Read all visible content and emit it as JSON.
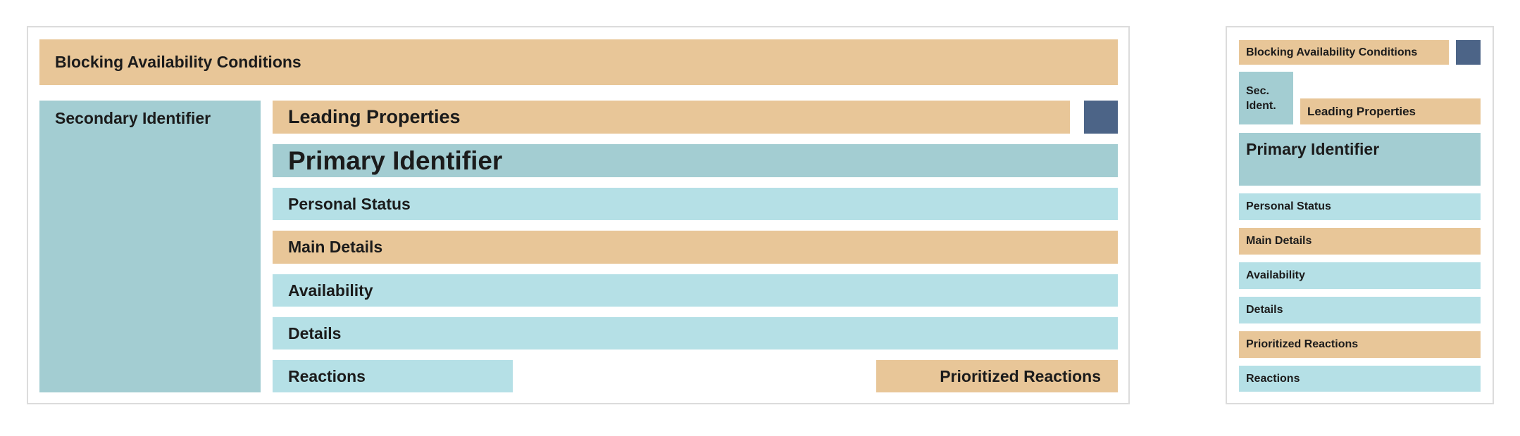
{
  "wide": {
    "blocking": "Blocking Availability Conditions",
    "secondary": "Secondary Identifier",
    "leading": "Leading Properties",
    "primary": "Primary Identifier",
    "personal_status": "Personal Status",
    "main_details": "Main Details",
    "availability": "Availability",
    "details": "Details",
    "reactions": "Reactions",
    "prioritized": "Prioritized Reactions"
  },
  "narrow": {
    "blocking": "Blocking Availability Conditions",
    "secondary_line1": "Sec.",
    "secondary_line2": "Ident.",
    "leading": "Leading Properties",
    "primary": "Primary Identifier",
    "personal_status": "Personal Status",
    "main_details": "Main Details",
    "availability": "Availability",
    "details": "Details",
    "prioritized": "Prioritized Reactions",
    "reactions": "Reactions"
  },
  "colors": {
    "tan": "#e8c698",
    "teal": "#a3cdd2",
    "cyan": "#b5e0e6",
    "navy": "#4c6487",
    "border": "#dcdcdc"
  }
}
